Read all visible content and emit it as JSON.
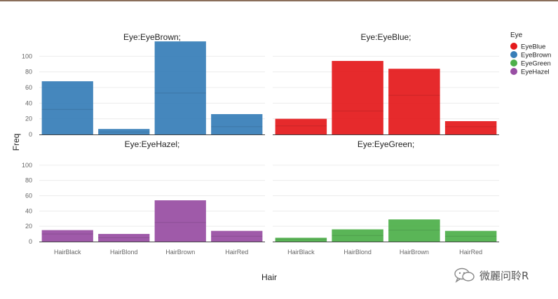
{
  "chart_data": {
    "type": "bar",
    "xlabel": "Hair",
    "ylabel": "Freq",
    "categories": [
      "HairBlack",
      "HairBlond",
      "HairBrown",
      "HairRed"
    ],
    "ylim": [
      0,
      120
    ],
    "yticks": [
      0,
      20,
      40,
      60,
      80,
      100
    ],
    "grid": true,
    "legend": {
      "title": "Eye",
      "position": "top-right",
      "items": [
        {
          "label": "EyeBlue",
          "color": "#e41a1c"
        },
        {
          "label": "EyeBrown",
          "color": "#377eb8"
        },
        {
          "label": "EyeGreen",
          "color": "#4daf4a"
        },
        {
          "label": "EyeHazel",
          "color": "#984ea3"
        }
      ]
    },
    "facets": [
      {
        "title": "Eye:EyeBrown;",
        "color": "#377eb8",
        "values": [
          68,
          7,
          119,
          26
        ],
        "splits": [
          32,
          3,
          53,
          10
        ]
      },
      {
        "title": "Eye:EyeBlue;",
        "color": "#e41a1c",
        "values": [
          20,
          94,
          84,
          17
        ],
        "splits": [
          11,
          30,
          50,
          10
        ]
      },
      {
        "title": "Eye:EyeHazel;",
        "color": "#984ea3",
        "values": [
          15,
          10,
          54,
          14
        ],
        "splits": [
          10,
          5,
          25,
          7
        ]
      },
      {
        "title": "Eye:EyeGreen;",
        "color": "#4daf4a",
        "values": [
          5,
          16,
          29,
          14
        ],
        "splits": [
          3,
          8,
          15,
          7
        ]
      }
    ]
  },
  "watermark": {
    "icon": "wechat-icon",
    "text": "微麗问聆R"
  }
}
